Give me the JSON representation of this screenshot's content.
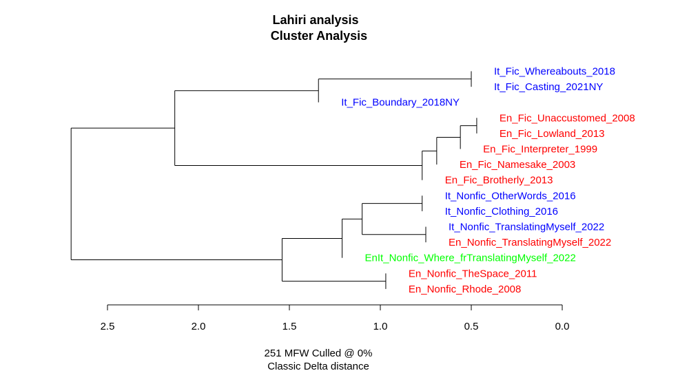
{
  "chart_data": {
    "type": "dendrogram",
    "title_line1": "Lahiri analysis",
    "title_line2": "Cluster Analysis",
    "subtitle_line1": "251 MFW  Culled @ 0%",
    "subtitle_line2": "Classic Delta distance",
    "axis": {
      "range": [
        2.5,
        0.0
      ],
      "ticks": [
        "2.5",
        "2.0",
        "1.5",
        "1.0",
        "0.5",
        "0.0"
      ],
      "tick_values": [
        2.5,
        2.0,
        1.5,
        1.0,
        0.5,
        0.0
      ]
    },
    "colors": {
      "It": "#0000ff",
      "En": "#ff0000",
      "EnIt": "#00ff00"
    },
    "leaves": [
      {
        "label": "It_Fic_Whereabouts_2018",
        "group": "It"
      },
      {
        "label": "It_Fic_Casting_2021NY",
        "group": "It"
      },
      {
        "label": "It_Fic_Boundary_2018NY",
        "group": "It"
      },
      {
        "label": "En_Fic_Unaccustomed_2008",
        "group": "En"
      },
      {
        "label": "En_Fic_Lowland_2013",
        "group": "En"
      },
      {
        "label": "En_Fic_Interpreter_1999",
        "group": "En"
      },
      {
        "label": "En_Fic_Namesake_2003",
        "group": "En"
      },
      {
        "label": "En_Fic_Brotherly_2013",
        "group": "En"
      },
      {
        "label": "It_Nonfic_OtherWords_2016",
        "group": "It"
      },
      {
        "label": "It_Nonfic_Clothing_2016",
        "group": "It"
      },
      {
        "label": "It_Nonfic_TranslatingMyself_2022",
        "group": "It"
      },
      {
        "label": "En_Nonfic_TranslatingMyself_2022",
        "group": "En"
      },
      {
        "label": "EnIt_Nonfic_Where_frTranslatingMyself_2022",
        "group": "EnIt"
      },
      {
        "label": "En_Nonfic_TheSpace_2011",
        "group": "En"
      },
      {
        "label": "En_Nonfic_Rhode_2008",
        "group": "En"
      }
    ],
    "merges": [
      {
        "id": "m1",
        "children": [
          "L0",
          "L1"
        ],
        "height": 0.5
      },
      {
        "id": "m2",
        "children": [
          "m1",
          "L2"
        ],
        "height": 1.34
      },
      {
        "id": "m3",
        "children": [
          "L3",
          "L4"
        ],
        "height": 0.47
      },
      {
        "id": "m4",
        "children": [
          "m3",
          "L5"
        ],
        "height": 0.56
      },
      {
        "id": "m5",
        "children": [
          "m4",
          "L6"
        ],
        "height": 0.69
      },
      {
        "id": "m6",
        "children": [
          "m5",
          "L7"
        ],
        "height": 0.77
      },
      {
        "id": "m7",
        "children": [
          "m2",
          "m6"
        ],
        "height": 2.13
      },
      {
        "id": "m8",
        "children": [
          "L8",
          "L9"
        ],
        "height": 0.77
      },
      {
        "id": "m9",
        "children": [
          "L10",
          "L11"
        ],
        "height": 0.75
      },
      {
        "id": "m10",
        "children": [
          "m8",
          "m9"
        ],
        "height": 1.1
      },
      {
        "id": "m11",
        "children": [
          "m10",
          "L12"
        ],
        "height": 1.21
      },
      {
        "id": "m12",
        "children": [
          "L13",
          "L14"
        ],
        "height": 0.97
      },
      {
        "id": "m13",
        "children": [
          "m11",
          "m12"
        ],
        "height": 1.54
      },
      {
        "id": "m14",
        "children": [
          "m7",
          "m13"
        ],
        "height": 2.7
      }
    ]
  }
}
